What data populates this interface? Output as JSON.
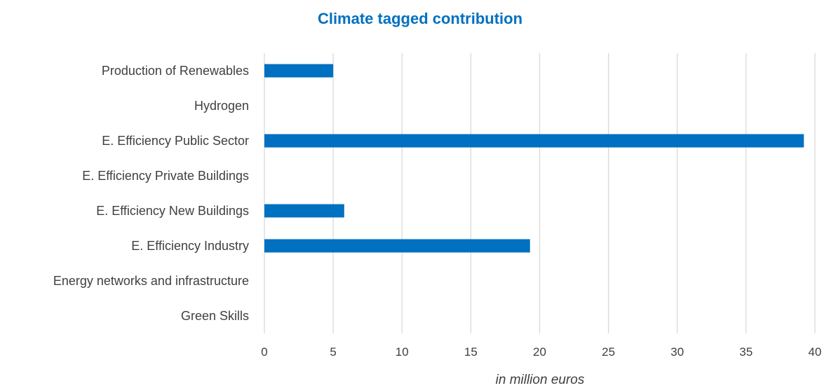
{
  "chart_data": {
    "type": "bar",
    "orientation": "horizontal",
    "title": "Climate tagged contribution",
    "xlabel": "in million euros",
    "ylabel": "",
    "categories": [
      "Production of Renewables",
      "Hydrogen",
      "E. Efficiency Public Sector",
      "E. Efficiency Private Buildings",
      "E. Efficiency New Buildings",
      "E. Efficiency Industry",
      "Energy networks and infrastructure",
      "Green Skills"
    ],
    "values": [
      5,
      0,
      39.2,
      0,
      5.8,
      19.3,
      0,
      0
    ],
    "xlim": [
      0,
      40
    ],
    "xticks": [
      "0",
      "5",
      "10",
      "15",
      "20",
      "25",
      "30",
      "35",
      "40"
    ],
    "grid": "vertical",
    "legend": "none",
    "color": "#0070C0",
    "gridColor": "#D9D9D9"
  }
}
